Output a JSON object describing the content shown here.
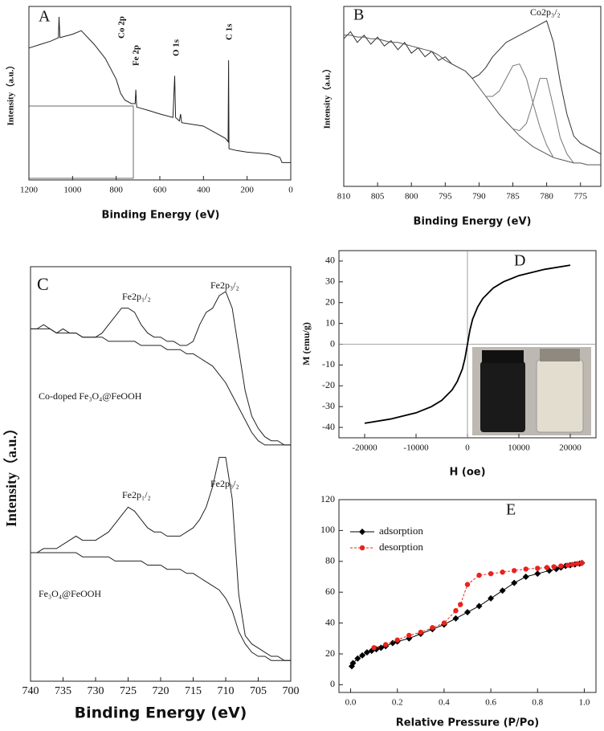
{
  "chart_data": [
    {
      "type": "line",
      "panel_label": "A",
      "xlabel": "Binding Energy (eV)",
      "ylabel": "Intensity（a.u.）",
      "xlim": [
        1200,
        0
      ],
      "xticks": [
        1200,
        1000,
        800,
        600,
        400,
        200,
        0
      ],
      "ylim": [
        0,
        100
      ],
      "annotations": [
        "Co 2p",
        "Fe 2p",
        "O 1s",
        "C 1s"
      ],
      "x": [
        1200,
        1150,
        1100,
        1065,
        1062,
        1058,
        1000,
        960,
        900,
        850,
        800,
        780,
        760,
        730,
        713,
        710,
        706,
        650,
        600,
        540,
        532,
        528,
        510,
        505,
        500,
        450,
        400,
        300,
        287,
        285,
        283,
        250,
        200,
        100,
        50,
        40,
        0
      ],
      "series": [
        {
          "color": "#222222",
          "values": [
            76,
            78,
            80,
            82,
            94,
            82,
            84,
            86,
            78,
            70,
            58,
            50,
            46,
            44,
            44,
            52,
            42,
            40,
            38,
            36,
            60,
            36,
            34,
            38,
            33,
            32,
            31,
            24,
            22,
            69,
            18,
            17,
            16,
            15,
            13,
            10,
            10
          ]
        }
      ]
    },
    {
      "type": "line",
      "panel_label": "B",
      "xlabel": "Binding Energy (eV)",
      "ylabel": "Intensity（a.u.）",
      "xlim": [
        810,
        772
      ],
      "xticks": [
        810,
        805,
        800,
        795,
        790,
        785,
        780,
        775
      ],
      "ylim": [
        0,
        100
      ],
      "annotations": [
        "Co2p₃/₂"
      ],
      "x": [
        810,
        809,
        808,
        807,
        806,
        805,
        804,
        803,
        802,
        801,
        800,
        799,
        798,
        797,
        796,
        795,
        794,
        793,
        792,
        791,
        790,
        789,
        788,
        787,
        786,
        785,
        784,
        783,
        782,
        781,
        780,
        779,
        778,
        777,
        776,
        775,
        774,
        773,
        772
      ],
      "series": [
        {
          "color": "#333333",
          "values": [
            82,
            86,
            80,
            84,
            79,
            83,
            78,
            81,
            76,
            80,
            74,
            77,
            72,
            75,
            70,
            72,
            68,
            66,
            64,
            60,
            62,
            66,
            72,
            76,
            80,
            82,
            84,
            86,
            88,
            90,
            92,
            80,
            58,
            40,
            28,
            24,
            22,
            20,
            18
          ]
        },
        {
          "color": "#555555",
          "values": [
            84,
            84,
            83,
            83,
            82,
            82,
            81,
            80,
            80,
            79,
            78,
            77,
            76,
            75,
            73,
            70,
            68,
            66,
            64,
            60,
            55,
            50,
            45,
            40,
            36,
            32,
            28,
            25,
            22,
            20,
            18,
            16,
            15,
            14,
            13,
            13,
            12,
            12,
            12
          ]
        },
        {
          "color": "#777777",
          "values": [
            null,
            null,
            null,
            null,
            null,
            null,
            null,
            null,
            null,
            null,
            null,
            null,
            null,
            null,
            null,
            null,
            null,
            null,
            null,
            null,
            55,
            50,
            50,
            53,
            60,
            67,
            68,
            60,
            46,
            33,
            23,
            16,
            15,
            null,
            null,
            null,
            null,
            null,
            null
          ]
        },
        {
          "color": "#777777",
          "values": [
            null,
            null,
            null,
            null,
            null,
            null,
            null,
            null,
            null,
            null,
            null,
            null,
            null,
            null,
            null,
            null,
            null,
            null,
            null,
            null,
            null,
            null,
            null,
            null,
            null,
            32,
            31,
            35,
            47,
            60,
            60,
            44,
            27,
            18,
            13,
            13,
            null,
            null,
            null
          ]
        }
      ]
    },
    {
      "type": "line",
      "panel_label": "C",
      "xlabel": "Binding Energy (eV)",
      "ylabel": "Intensity（a.u.）",
      "xlim": [
        740,
        700
      ],
      "xticks": [
        740,
        735,
        730,
        725,
        720,
        715,
        710,
        705,
        700
      ],
      "ylim": [
        0,
        100
      ],
      "annotations": [
        "Fe2p₁/₂",
        "Fe2p₃/₂",
        "Co-doped Fe₃O₄@FeOOH",
        "Fe2p₁/₂",
        "Fe2p₃/₂",
        "Fe₃O₄@FeOOH"
      ],
      "x": [
        740,
        739,
        738,
        737,
        736,
        735,
        734,
        733,
        732,
        731,
        730,
        729,
        728,
        727,
        726,
        725,
        724,
        723,
        722,
        721,
        720,
        719,
        718,
        717,
        716,
        715,
        714,
        713,
        712,
        711,
        710,
        709,
        708,
        707,
        706,
        705,
        704,
        703,
        702,
        701,
        700
      ],
      "series": [
        {
          "color": "#222222",
          "values": [
            85,
            85,
            86,
            85,
            84,
            85,
            84,
            84,
            83,
            83,
            83,
            84,
            86,
            88,
            90,
            90,
            89,
            86,
            84,
            83,
            83,
            82,
            82,
            81,
            81,
            82,
            86,
            89,
            90,
            93,
            94,
            90,
            80,
            70,
            64,
            61,
            59,
            58,
            58,
            57,
            57
          ]
        },
        {
          "color": "#222222",
          "values": [
            85,
            85,
            85,
            85,
            84,
            84,
            84,
            84,
            83,
            83,
            83,
            83,
            82,
            82,
            82,
            82,
            82,
            81,
            81,
            81,
            81,
            80,
            80,
            80,
            79,
            79,
            78,
            77,
            76,
            74,
            72,
            69,
            66,
            63,
            60,
            58,
            57,
            57,
            57,
            57,
            57
          ]
        },
        {
          "color": "#222222",
          "values": [
            31,
            31,
            32,
            32,
            32,
            33,
            34,
            35,
            34,
            34,
            34,
            35,
            36,
            38,
            40,
            42,
            41,
            39,
            37,
            36,
            36,
            35,
            35,
            35,
            36,
            37,
            39,
            42,
            47,
            54,
            54,
            44,
            21,
            11,
            9,
            8,
            7,
            6,
            6,
            5,
            5
          ]
        },
        {
          "color": "#222222",
          "values": [
            31,
            31,
            31,
            31,
            31,
            31,
            31,
            31,
            30,
            30,
            30,
            30,
            30,
            29,
            29,
            29,
            29,
            29,
            28,
            28,
            28,
            27,
            27,
            27,
            26,
            26,
            25,
            24,
            23,
            22,
            20,
            17,
            12,
            9,
            7,
            6,
            6,
            5,
            5,
            5,
            5
          ]
        }
      ]
    },
    {
      "type": "line",
      "panel_label": "D",
      "xlabel": "H (oe)",
      "ylabel": "M (emu/g)",
      "xlim": [
        -25000,
        25000
      ],
      "xticks": [
        -20000,
        -10000,
        0,
        10000,
        20000
      ],
      "ylim": [
        -45,
        45
      ],
      "yticks": [
        -40,
        -30,
        -20,
        -10,
        0,
        10,
        20,
        30,
        40
      ],
      "origin_lines": true,
      "x": [
        -20000,
        -15000,
        -10000,
        -7000,
        -5000,
        -3000,
        -2000,
        -1000,
        -500,
        0,
        500,
        1000,
        2000,
        3000,
        5000,
        7000,
        10000,
        15000,
        20000
      ],
      "series": [
        {
          "color": "#000000",
          "values": [
            -38,
            -36,
            -33,
            -30,
            -27,
            -22,
            -18,
            -12,
            -7,
            0,
            7,
            12,
            18,
            22,
            27,
            30,
            33,
            36,
            38
          ]
        }
      ]
    },
    {
      "type": "line",
      "panel_label": "E",
      "xlabel": "Relative Pressure (P/Po)",
      "xlim": [
        -0.05,
        1.05
      ],
      "xticks": [
        {
          "value": 0,
          "label": "0.0"
        },
        0.2,
        0.4,
        0.6,
        0.8,
        {
          "value": 1,
          "label": "1.0"
        }
      ],
      "ylim": [
        -5,
        120
      ],
      "yticks": [
        0,
        20,
        40,
        60,
        80,
        100,
        120
      ],
      "legend": "upper left",
      "series": [
        {
          "name": "adsorption",
          "color": "#000000",
          "marker": "diamond",
          "linestyle": "solid",
          "x": [
            0.005,
            0.01,
            0.03,
            0.05,
            0.07,
            0.09,
            0.11,
            0.13,
            0.15,
            0.18,
            0.2,
            0.25,
            0.3,
            0.35,
            0.4,
            0.45,
            0.5,
            0.55,
            0.6,
            0.65,
            0.7,
            0.75,
            0.8,
            0.85,
            0.88,
            0.9,
            0.92,
            0.94,
            0.96,
            0.98,
            0.99
          ],
          "values": [
            12,
            14,
            17,
            19,
            21,
            22,
            23,
            24,
            25,
            27,
            28,
            30,
            33,
            36,
            39,
            43,
            47,
            51,
            56,
            61,
            66,
            70,
            72,
            74,
            75,
            76,
            77,
            77.5,
            78,
            78.5,
            79
          ]
        },
        {
          "name": "desorption",
          "color": "#e8231f",
          "marker": "circle",
          "linestyle": "dashed",
          "x": [
            0.99,
            0.97,
            0.95,
            0.93,
            0.9,
            0.87,
            0.84,
            0.8,
            0.75,
            0.7,
            0.65,
            0.6,
            0.55,
            0.5,
            0.47,
            0.45,
            0.4,
            0.35,
            0.3,
            0.25,
            0.2,
            0.15,
            0.1
          ],
          "values": [
            79,
            78.5,
            78,
            77.5,
            77,
            76.5,
            76,
            75.5,
            75,
            74,
            73,
            72,
            71,
            65,
            52,
            48,
            40,
            37,
            34,
            32,
            29,
            26,
            24
          ]
        }
      ]
    }
  ]
}
